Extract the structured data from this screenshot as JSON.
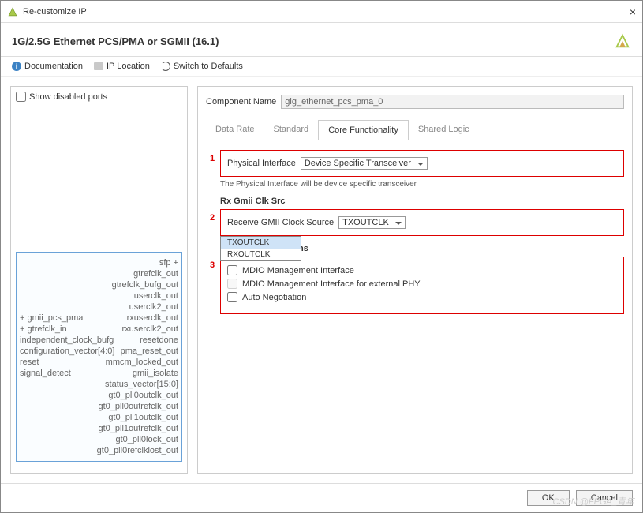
{
  "window": {
    "title": "Re-customize IP",
    "close": "×"
  },
  "header": {
    "title": "1G/2.5G Ethernet PCS/PMA or SGMII (16.1)"
  },
  "toolbar": {
    "doc": "Documentation",
    "loc": "IP Location",
    "reset": "Switch to Defaults"
  },
  "left": {
    "show_disabled": "Show disabled ports",
    "ports_left": [
      "",
      "",
      "",
      "",
      "",
      "+ gmii_pcs_pma",
      "+ gtrefclk_in",
      "independent_clock_bufg",
      "configuration_vector[4:0]",
      "reset",
      "signal_detect"
    ],
    "ports_right": [
      "sfp +",
      "gtrefclk_out",
      "gtrefclk_bufg_out",
      "userclk_out",
      "userclk2_out",
      "rxuserclk_out",
      "rxuserclk2_out",
      "resetdone",
      "pma_reset_out",
      "mmcm_locked_out",
      "gmii_isolate",
      "status_vector[15:0]",
      "gt0_pll0outclk_out",
      "gt0_pll0outrefclk_out",
      "gt0_pll1outclk_out",
      "gt0_pll1outrefclk_out",
      "gt0_pll0lock_out",
      "gt0_pll0refclklost_out"
    ]
  },
  "right": {
    "cn_label": "Component Name",
    "cn_value": "gig_ethernet_pcs_pma_0",
    "tabs": [
      "Data Rate",
      "Standard",
      "Core Functionality",
      "Shared Logic"
    ],
    "active_tab": 2,
    "sec1": {
      "num": "1",
      "label": "Physical Interface",
      "value": "Device Specific Transceiver",
      "note": "The Physical Interface will be device specific transceiver"
    },
    "sec2": {
      "num": "2",
      "group": "Rx Gmii Clk Src",
      "label": "Receive GMII Clock Source",
      "value": "TXOUTCLK",
      "options": [
        "TXOUTCLK",
        "RXOUTCLK"
      ]
    },
    "sec3": {
      "num": "3",
      "group": "Management Options",
      "opt1": "MDIO Management Interface",
      "opt2": "MDIO Management Interface for external PHY",
      "opt3": "Auto Negotiation"
    }
  },
  "footer": {
    "ok": "OK",
    "cancel": "Cancel"
  },
  "watermark": "CSDN @FPGA_青年"
}
